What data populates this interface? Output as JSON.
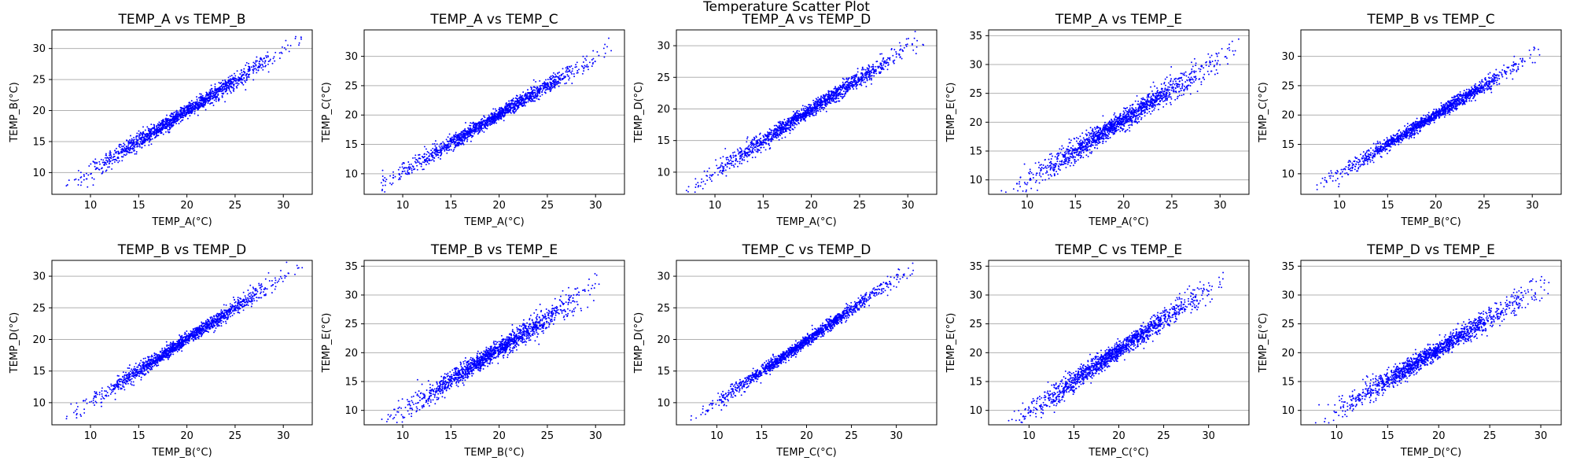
{
  "figure": {
    "title": "Temperature Scatter Plot",
    "marker_color": "#0000ff",
    "grid_color": "#b0b0b0"
  },
  "chart_data": [
    {
      "type": "scatter",
      "title": "TEMP_A vs TEMP_B",
      "xlabel": "TEMP_A(°C)",
      "ylabel": "TEMP_B(°C)",
      "xlim": [
        6,
        33
      ],
      "ylim": [
        6.5,
        33
      ],
      "xticks": [
        10,
        15,
        20,
        25,
        30
      ],
      "yticks": [
        10,
        15,
        20,
        25,
        30
      ],
      "grid": "y",
      "n_points": 1500,
      "x_range": [
        7,
        32
      ],
      "fit": {
        "slope": 0.97,
        "intercept": 0.5
      },
      "spread": 0.9
    },
    {
      "type": "scatter",
      "title": "TEMP_A vs TEMP_C",
      "xlabel": "TEMP_A(°C)",
      "ylabel": "TEMP_C(°C)",
      "xlim": [
        6,
        33
      ],
      "ylim": [
        6.5,
        34.5
      ],
      "xticks": [
        10,
        15,
        20,
        25,
        30
      ],
      "yticks": [
        10,
        15,
        20,
        25,
        30
      ],
      "grid": "y",
      "n_points": 1500,
      "x_range": [
        7,
        32
      ],
      "fit": {
        "slope": 0.98,
        "intercept": 0.5
      },
      "spread": 0.9
    },
    {
      "type": "scatter",
      "title": "TEMP_A vs TEMP_D",
      "xlabel": "TEMP_A(°C)",
      "ylabel": "TEMP_D(°C)",
      "xlim": [
        6,
        33
      ],
      "ylim": [
        6.5,
        32.5
      ],
      "xticks": [
        10,
        15,
        20,
        25,
        30
      ],
      "yticks": [
        10,
        15,
        20,
        25,
        30
      ],
      "grid": "y",
      "n_points": 1500,
      "x_range": [
        7,
        32
      ],
      "fit": {
        "slope": 0.98,
        "intercept": 0.3
      },
      "spread": 0.9
    },
    {
      "type": "scatter",
      "title": "TEMP_A vs TEMP_E",
      "xlabel": "TEMP_A(°C)",
      "ylabel": "TEMP_E(°C)",
      "xlim": [
        6,
        33
      ],
      "ylim": [
        7.5,
        36
      ],
      "xticks": [
        10,
        15,
        20,
        25,
        30
      ],
      "yticks": [
        10,
        15,
        20,
        25,
        30,
        35
      ],
      "grid": "y",
      "n_points": 1500,
      "x_range": [
        7,
        32
      ],
      "fit": {
        "slope": 1.06,
        "intercept": -0.8
      },
      "spread": 1.4
    },
    {
      "type": "scatter",
      "title": "TEMP_B vs TEMP_C",
      "xlabel": "TEMP_B(°C)",
      "ylabel": "TEMP_C(°C)",
      "xlim": [
        6,
        33
      ],
      "ylim": [
        6.5,
        34.5
      ],
      "xticks": [
        10,
        15,
        20,
        25,
        30
      ],
      "yticks": [
        10,
        15,
        20,
        25,
        30
      ],
      "grid": "y",
      "n_points": 1500,
      "x_range": [
        7.5,
        31
      ],
      "fit": {
        "slope": 1.0,
        "intercept": 0.0
      },
      "spread": 0.8
    },
    {
      "type": "scatter",
      "title": "TEMP_B vs TEMP_D",
      "xlabel": "TEMP_B(°C)",
      "ylabel": "TEMP_D(°C)",
      "xlim": [
        6,
        33
      ],
      "ylim": [
        6.5,
        32.5
      ],
      "xticks": [
        10,
        15,
        20,
        25,
        30
      ],
      "yticks": [
        10,
        15,
        20,
        25,
        30
      ],
      "grid": "y",
      "n_points": 1500,
      "x_range": [
        7.5,
        32
      ],
      "fit": {
        "slope": 1.0,
        "intercept": 0.0
      },
      "spread": 0.8
    },
    {
      "type": "scatter",
      "title": "TEMP_B vs TEMP_E",
      "xlabel": "TEMP_B(°C)",
      "ylabel": "TEMP_E(°C)",
      "xlim": [
        6,
        33
      ],
      "ylim": [
        7.5,
        36
      ],
      "xticks": [
        10,
        15,
        20,
        25,
        30
      ],
      "yticks": [
        10,
        15,
        20,
        25,
        30,
        35
      ],
      "grid": "y",
      "n_points": 1500,
      "x_range": [
        7.5,
        31
      ],
      "fit": {
        "slope": 1.08,
        "intercept": -1.0
      },
      "spread": 1.3
    },
    {
      "type": "scatter",
      "title": "TEMP_C vs TEMP_D",
      "xlabel": "TEMP_C(°C)",
      "ylabel": "TEMP_D(°C)",
      "xlim": [
        5.5,
        34.5
      ],
      "ylim": [
        6.5,
        32.5
      ],
      "xticks": [
        10,
        15,
        20,
        25,
        30
      ],
      "yticks": [
        10,
        15,
        20,
        25,
        30
      ],
      "grid": "y",
      "n_points": 1500,
      "x_range": [
        7,
        32
      ],
      "fit": {
        "slope": 0.98,
        "intercept": 0.2
      },
      "spread": 0.7
    },
    {
      "type": "scatter",
      "title": "TEMP_C vs TEMP_E",
      "xlabel": "TEMP_C(°C)",
      "ylabel": "TEMP_E(°C)",
      "xlim": [
        5.5,
        34.5
      ],
      "ylim": [
        7.5,
        36
      ],
      "xticks": [
        10,
        15,
        20,
        25,
        30
      ],
      "yticks": [
        10,
        15,
        20,
        25,
        30,
        35
      ],
      "grid": "y",
      "n_points": 1500,
      "x_range": [
        7,
        32
      ],
      "fit": {
        "slope": 1.07,
        "intercept": -1.0
      },
      "spread": 1.3
    },
    {
      "type": "scatter",
      "title": "TEMP_D vs TEMP_E",
      "xlabel": "TEMP_D(°C)",
      "ylabel": "TEMP_E(°C)",
      "xlim": [
        6.5,
        32
      ],
      "ylim": [
        7.5,
        36
      ],
      "xticks": [
        10,
        15,
        20,
        25,
        30
      ],
      "yticks": [
        10,
        15,
        20,
        25,
        30,
        35
      ],
      "grid": "y",
      "n_points": 1500,
      "x_range": [
        7.5,
        31
      ],
      "fit": {
        "slope": 1.08,
        "intercept": -1.0
      },
      "spread": 1.3
    }
  ]
}
